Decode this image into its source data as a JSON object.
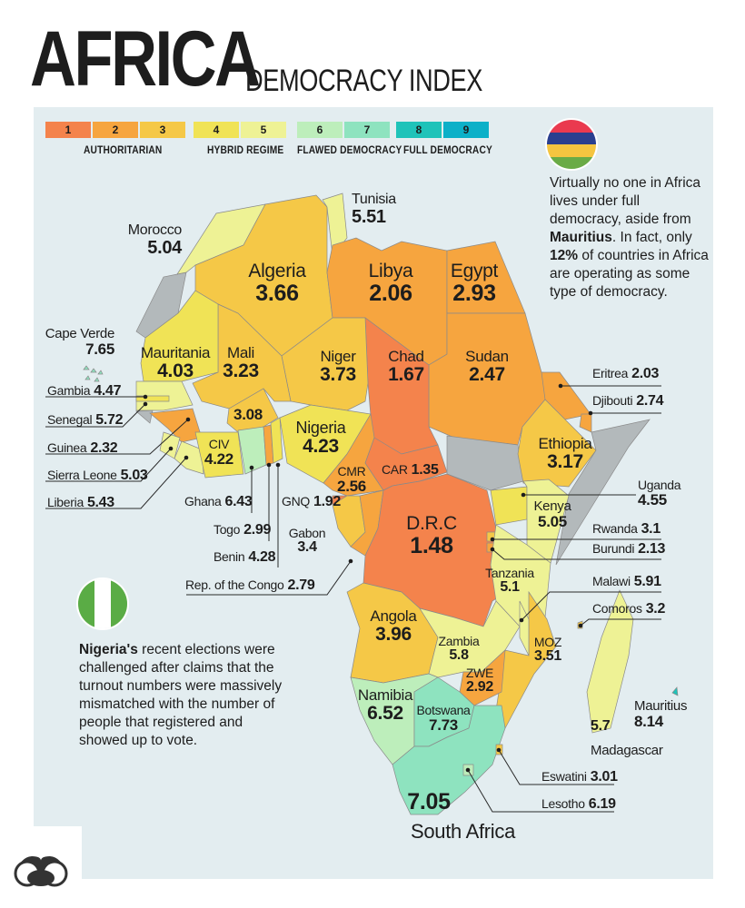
{
  "header": {
    "title": "AFRICA",
    "subtitle": "DEMOCRACY INDEX"
  },
  "legend": {
    "steps": [
      {
        "label": "1",
        "color": "#f4834c"
      },
      {
        "label": "2",
        "color": "#f6a53f"
      },
      {
        "label": "3",
        "color": "#f5c847"
      },
      {
        "label": "4",
        "color": "#f0e356"
      },
      {
        "label": "5",
        "color": "#eef295"
      },
      {
        "label": "6",
        "color": "#bdeebb"
      },
      {
        "label": "7",
        "color": "#8ee3bf"
      },
      {
        "label": "8",
        "color": "#1fc3b9"
      },
      {
        "label": "9",
        "color": "#0cb0c8"
      }
    ],
    "groups": [
      "AUTHORITARIAN",
      "HYBRID REGIME",
      "FLAWED DEMOCRACY",
      "FULL DEMOCRACY"
    ]
  },
  "no_data_color": "#b3b9bb",
  "countries": [
    {
      "name": "Morocco",
      "score": "5.04"
    },
    {
      "name": "Algeria",
      "score": "3.66"
    },
    {
      "name": "Tunisia",
      "score": "5.51"
    },
    {
      "name": "Libya",
      "score": "2.06"
    },
    {
      "name": "Egypt",
      "score": "2.93"
    },
    {
      "name": "Sudan",
      "score": "2.47"
    },
    {
      "name": "Chad",
      "score": "1.67"
    },
    {
      "name": "Niger",
      "score": "3.73"
    },
    {
      "name": "Mali",
      "score": "3.23"
    },
    {
      "name": "Mauritania",
      "score": "4.03"
    },
    {
      "name": "Cape Verde",
      "score": "7.65"
    },
    {
      "name": "Gambia",
      "score": "4.47"
    },
    {
      "name": "Senegal",
      "score": "5.72"
    },
    {
      "name": "Guinea",
      "score": "2.32"
    },
    {
      "name": "Sierra Leone",
      "score": "5.03"
    },
    {
      "name": "Liberia",
      "score": "5.43"
    },
    {
      "name": "CIV",
      "score": "4.22"
    },
    {
      "name": "",
      "score": "3.08"
    },
    {
      "name": "Ghana",
      "score": "6.43"
    },
    {
      "name": "Togo",
      "score": "2.99"
    },
    {
      "name": "Benin",
      "score": "4.28"
    },
    {
      "name": "Nigeria",
      "score": "4.23"
    },
    {
      "name": "CMR",
      "score": "2.56"
    },
    {
      "name": "CAR",
      "score": "1.35"
    },
    {
      "name": "GNQ",
      "score": "1.92"
    },
    {
      "name": "Gabon",
      "score": "3.4"
    },
    {
      "name": "Rep. of the Congo",
      "score": "2.79"
    },
    {
      "name": "D.R.C",
      "score": "1.48"
    },
    {
      "name": "Eritrea",
      "score": "2.03"
    },
    {
      "name": "Djibouti",
      "score": "2.74"
    },
    {
      "name": "Ethiopia",
      "score": "3.17"
    },
    {
      "name": "Uganda",
      "score": "4.55"
    },
    {
      "name": "Kenya",
      "score": "5.05"
    },
    {
      "name": "Rwanda",
      "score": "3.1"
    },
    {
      "name": "Burundi",
      "score": "2.13"
    },
    {
      "name": "Tanzania",
      "score": "5.1"
    },
    {
      "name": "Malawi",
      "score": "5.91"
    },
    {
      "name": "Comoros",
      "score": "3.2"
    },
    {
      "name": "Angola",
      "score": "3.96"
    },
    {
      "name": "Zambia",
      "score": "5.8"
    },
    {
      "name": "MOZ",
      "score": "3.51"
    },
    {
      "name": "ZWE",
      "score": "2.92"
    },
    {
      "name": "Namibia",
      "score": "6.52"
    },
    {
      "name": "Botswana",
      "score": "7.73"
    },
    {
      "name": "Mauritius",
      "score": "8.14"
    },
    {
      "name": "Madagascar",
      "score": "5.7"
    },
    {
      "name": "Eswatini",
      "score": "3.01"
    },
    {
      "name": "Lesotho",
      "score": "6.19"
    },
    {
      "name": "South Africa",
      "score": "7.05"
    }
  ],
  "notes": {
    "mauritius": {
      "flag_colors": [
        "#ea3a4f",
        "#2a3f8f",
        "#f5c540",
        "#6aab46"
      ],
      "parts": [
        "Virtually no one in Africa lives under full democracy, aside from ",
        "Mauritius",
        ". In fact, only ",
        "12%",
        " of countries in Africa are operating as some type of democracy."
      ]
    },
    "nigeria": {
      "flag_colors": [
        "#5aac45",
        "#ffffff"
      ],
      "parts": [
        "Nigeria's",
        " recent elections were challenged after claims that the turnout numbers were massively mismatched with the number of people that registered and showed up to vote."
      ]
    }
  }
}
